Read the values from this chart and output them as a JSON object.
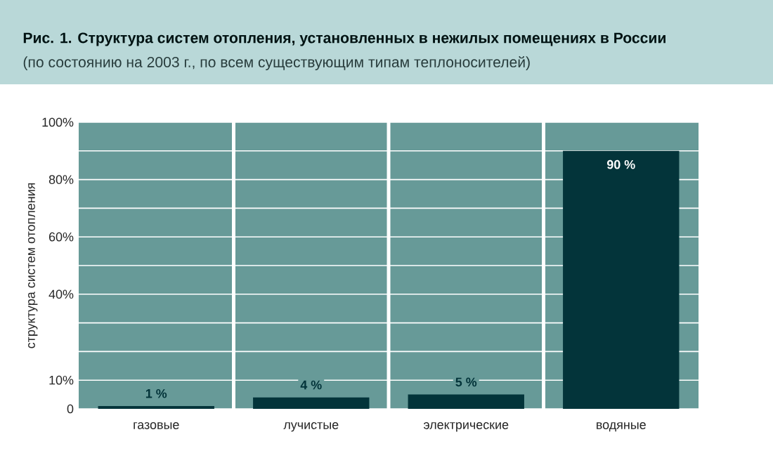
{
  "chart_data": {
    "type": "bar",
    "title": "Рис. 1. Структура систем отопления, установленных в нежилых помещениях в России",
    "subtitle": "(по состоянию на 2003 г., по всем существующим типам теплоносителей)",
    "ylabel": "структура систем отопления",
    "categories": [
      "газовые",
      "лучистые",
      "электрические",
      "водяные"
    ],
    "values": [
      1,
      4,
      5,
      90
    ],
    "value_labels": [
      "1 %",
      "4 %",
      "5 %",
      "90 %"
    ],
    "color": "#03343a",
    "ylim": [
      0,
      100
    ],
    "yticks": [
      0,
      {
        "value": 10,
        "label": "10%"
      },
      {
        "value": 20,
        "label": null
      },
      {
        "value": 30,
        "label": null
      },
      {
        "value": 40,
        "label": "40%"
      },
      {
        "value": 50,
        "label": null
      },
      {
        "value": 60,
        "label": "60%"
      },
      {
        "value": 70,
        "label": null
      },
      {
        "value": 80,
        "label": "80%"
      },
      {
        "value": 90,
        "label": null
      },
      {
        "value": 100,
        "label": "100%"
      }
    ],
    "grid": true
  }
}
